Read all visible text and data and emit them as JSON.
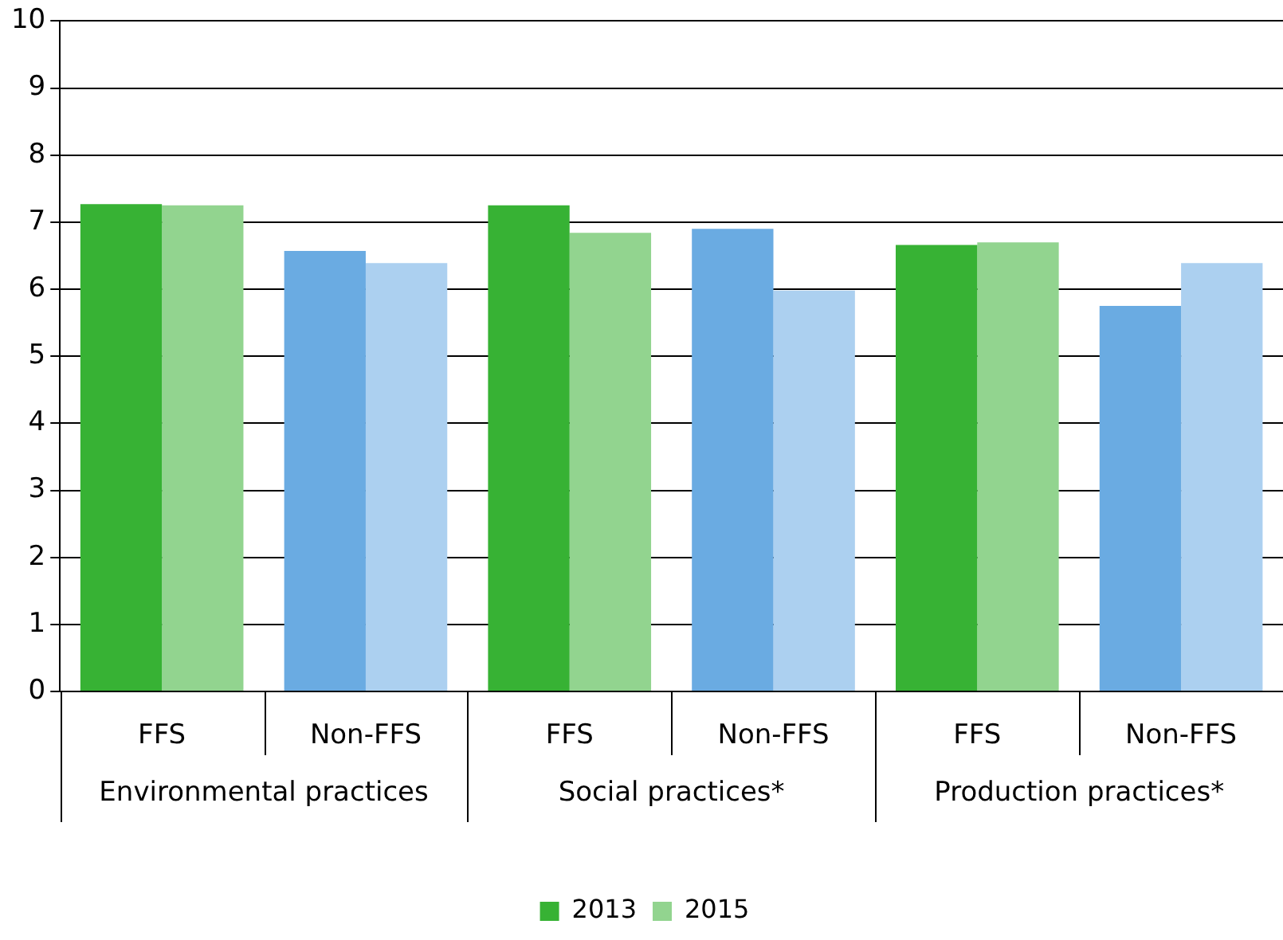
{
  "chart_data": {
    "type": "bar",
    "categories": [
      "FFS",
      "Non-FFS",
      "FFS",
      "Non-FFS",
      "FFS",
      "Non-FFS"
    ],
    "series": [
      {
        "name": "2013",
        "colors": [
          "#37b234",
          "#6aabe2",
          "#37b234",
          "#6aabe2",
          "#37b234",
          "#6aabe2"
        ],
        "values": [
          7.27,
          6.57,
          7.25,
          6.9,
          6.66,
          5.75
        ]
      },
      {
        "name": "2015",
        "colors": [
          "#92d48f",
          "#acd0f0",
          "#92d48f",
          "#acd0f0",
          "#92d48f",
          "#acd0f0"
        ],
        "values": [
          7.25,
          6.39,
          6.84,
          5.98,
          6.7,
          6.39
        ]
      }
    ],
    "annotations": [
      "Environmental practices",
      "Social practices*",
      "Production practices*"
    ],
    "ylim": [
      0,
      10
    ],
    "yticks": [
      0,
      1,
      2,
      3,
      4,
      5,
      6,
      7,
      8,
      9,
      10
    ],
    "grid": "y",
    "legend": "bottom"
  }
}
